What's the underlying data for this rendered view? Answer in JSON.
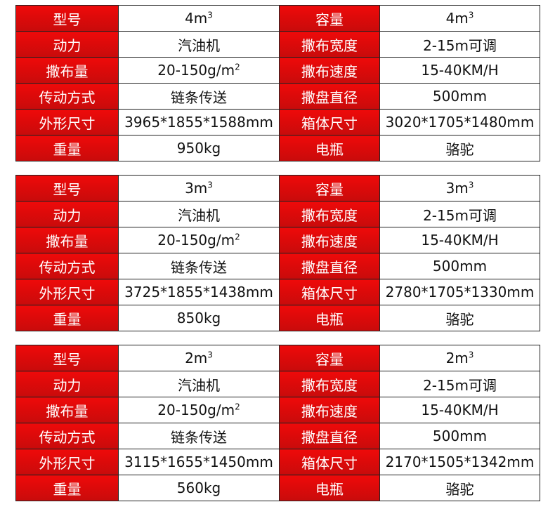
{
  "labels": {
    "model": "型号",
    "capacity": "容量",
    "power": "动力",
    "spread_width": "撒布宽度",
    "spread_amount": "撒布量",
    "spread_speed": "撒布速度",
    "transmission": "传动方式",
    "disc_diameter": "撒盘直径",
    "dimensions": "外形尺寸",
    "box_size": "箱体尺寸",
    "weight": "重量",
    "battery": "电瓶"
  },
  "tables": [
    {
      "model": "4m",
      "capacity": "4m",
      "power": "汽油机",
      "spread_width": "2-15m可调",
      "spread_amount": "20-150g/m",
      "spread_speed": "15-40KM/H",
      "transmission": "链条传送",
      "disc_diameter": "500mm",
      "dimensions": "3965*1855*1588mm",
      "box_size": "3020*1705*1480mm",
      "weight": "950kg",
      "battery": "骆驼"
    },
    {
      "model": "3m",
      "capacity": "3m",
      "power": "汽油机",
      "spread_width": "2-15m可调",
      "spread_amount": "20-150g/m",
      "spread_speed": "15-40KM/H",
      "transmission": "链条传送",
      "disc_diameter": "500mm",
      "dimensions": "3725*1855*1438mm",
      "box_size": "2780*1705*1330mm",
      "weight": "850kg",
      "battery": "骆驼"
    },
    {
      "model": "2m",
      "capacity": "2m",
      "power": "汽油机",
      "spread_width": "2-15m可调",
      "spread_amount": "20-150g/m",
      "spread_speed": "15-40KM/H",
      "transmission": "链条传送",
      "disc_diameter": "500mm",
      "dimensions": "3115*1655*1450mm",
      "box_size": "2170*1505*1342mm",
      "weight": "560kg",
      "battery": "骆驼"
    }
  ],
  "sup": {
    "cubic": "3",
    "square": "2"
  },
  "colors": {
    "label_bg": "#e00a0a",
    "label_text": "#ffffff",
    "border": "#222222"
  }
}
